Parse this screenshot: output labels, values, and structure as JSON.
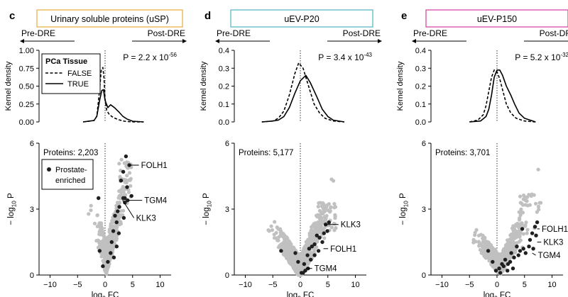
{
  "colors": {
    "background": "#ffffff",
    "other_points": "#c0c0c0",
    "enriched_points": "#1f1f1f",
    "axis": "#000000"
  },
  "legend_density": {
    "title": "PCa Tissue",
    "false_label": "FALSE",
    "true_label": "TRUE"
  },
  "legend_volcano": {
    "label_line1": "Prostate-",
    "label_line2": "enriched"
  },
  "chart_data": [
    {
      "panel": "c",
      "title": "Urinary soluble proteins (uSP)",
      "title_color": "#e8b24a",
      "direction_left": "Pre-DRE",
      "direction_right": "Post-DRE",
      "density": {
        "type": "line",
        "ylabel": "Kernel density",
        "ylim": [
          0,
          1.0
        ],
        "yticks": [
          "0.00",
          "0.25",
          "0.50",
          "0.75",
          "1.00"
        ],
        "xlim": [
          -12,
          12
        ],
        "p_text": "P = 2.2 x 10",
        "p_exp": "-56",
        "series": [
          {
            "name": "FALSE",
            "style": "dashed",
            "x": [
              -4,
              -2,
              -1.5,
              -1,
              -0.7,
              -0.4,
              -0.2,
              0,
              0.3,
              0.8,
              1.5,
              2.5,
              3.5,
              5,
              7
            ],
            "y": [
              0,
              0.02,
              0.08,
              0.45,
              0.72,
              0.76,
              0.62,
              0.32,
              0.16,
              0.1,
              0.06,
              0.03,
              0.01,
              0,
              0
            ]
          },
          {
            "name": "TRUE",
            "style": "solid",
            "x": [
              -4,
              -2,
              -1.5,
              -1,
              -0.6,
              -0.3,
              0,
              0.5,
              1,
              1.7,
              2.5,
              3.2,
              4,
              5,
              7
            ],
            "y": [
              0,
              0.02,
              0.08,
              0.3,
              0.44,
              0.45,
              0.3,
              0.2,
              0.24,
              0.2,
              0.14,
              0.08,
              0.04,
              0.01,
              0
            ]
          }
        ]
      },
      "volcano": {
        "type": "scatter",
        "xlabel": "log",
        "xlabel_sub": "2",
        "xlabel_tail": " FC",
        "ylabel_prefix": "− log",
        "ylabel_sub": "10",
        "ylabel_tail": " P",
        "xlim": [
          -12,
          12
        ],
        "ylim": [
          0,
          6
        ],
        "xticks": [
          -10,
          -5,
          0,
          5,
          10
        ],
        "yticks": [
          0,
          3,
          6
        ],
        "proteins": "Proteins: 2,203",
        "enriched": [
          [
            3.8,
            5.4
          ],
          [
            4.4,
            5.0
          ],
          [
            3.3,
            4.7
          ],
          [
            2.9,
            4.3
          ],
          [
            4.0,
            4.0
          ],
          [
            4.8,
            3.6
          ],
          [
            3.6,
            3.5
          ],
          [
            3.3,
            3.5
          ],
          [
            4.1,
            3.4
          ],
          [
            2.6,
            3.1
          ],
          [
            3.6,
            3.3
          ],
          [
            2.3,
            2.9
          ],
          [
            1.8,
            2.7
          ],
          [
            2.1,
            2.4
          ],
          [
            1.5,
            2.0
          ],
          [
            2.5,
            1.9
          ],
          [
            1.2,
            1.5
          ],
          [
            2.1,
            1.3
          ],
          [
            1.0,
            1.0
          ],
          [
            -1.0,
            1.1
          ],
          [
            1.6,
            0.8
          ],
          [
            0.5,
            0.6
          ],
          [
            -0.4,
            0.4
          ],
          [
            -1.2,
            3.5
          ],
          [
            3.4,
            2.6
          ]
        ],
        "annotations": [
          {
            "label": "FOLH1",
            "x": 4.4,
            "y": 5.0,
            "tx": 6.4,
            "ty": 5.0
          },
          {
            "label": "TGM4",
            "x": 4.3,
            "y": 3.4,
            "tx": 7.0,
            "ty": 3.4
          },
          {
            "label": "KLK3",
            "x": 3.2,
            "y": 3.4,
            "tx": 5.5,
            "ty": 2.6
          }
        ]
      }
    },
    {
      "panel": "d",
      "title": "uEV-P20",
      "title_color": "#5ab8c4",
      "direction_left": "Pre-DRE",
      "direction_right": "Post-DRE",
      "density": {
        "type": "line",
        "ylabel": "Kernel density",
        "ylim": [
          0,
          0.4
        ],
        "yticks": [
          "0.0",
          "0.1",
          "0.2",
          "0.3",
          "0.4"
        ],
        "xlim": [
          -12,
          12
        ],
        "p_text": "P = 3.4 x 10",
        "p_exp": "-43",
        "series": [
          {
            "name": "FALSE",
            "style": "dashed",
            "x": [
              -7,
              -5,
              -4,
              -3,
              -2,
              -1,
              -0.3,
              0.5,
              1.5,
              2.5,
              3.5,
              4.5,
              6,
              8
            ],
            "y": [
              0,
              0.005,
              0.02,
              0.06,
              0.15,
              0.27,
              0.33,
              0.3,
              0.2,
              0.1,
              0.05,
              0.02,
              0.005,
              0
            ]
          },
          {
            "name": "TRUE",
            "style": "solid",
            "x": [
              -7,
              -5,
              -4,
              -3,
              -2,
              -1,
              0,
              1,
              1.8,
              3,
              4,
              5,
              6,
              8
            ],
            "y": [
              0,
              0.005,
              0.01,
              0.03,
              0.08,
              0.16,
              0.23,
              0.26,
              0.22,
              0.14,
              0.07,
              0.03,
              0.01,
              0
            ]
          }
        ]
      },
      "volcano": {
        "type": "scatter",
        "xlabel": "log",
        "xlabel_sub": "2",
        "xlabel_tail": " FC",
        "ylabel_prefix": "− log",
        "ylabel_sub": "10",
        "ylabel_tail": " P",
        "xlim": [
          -12,
          12
        ],
        "ylim": [
          0,
          6
        ],
        "xticks": [
          -10,
          -5,
          0,
          5,
          10
        ],
        "yticks": [
          0,
          3,
          6
        ],
        "proteins": "Proteins: 5,177",
        "enriched": [
          [
            5.2,
            2.4
          ],
          [
            4.6,
            2.3
          ],
          [
            4.9,
            2.0
          ],
          [
            4.3,
            1.9
          ],
          [
            3.5,
            1.7
          ],
          [
            3.0,
            1.8
          ],
          [
            4.0,
            1.5
          ],
          [
            2.6,
            1.4
          ],
          [
            2.1,
            1.3
          ],
          [
            1.6,
            1.2
          ],
          [
            3.3,
            1.1
          ],
          [
            2.6,
            0.9
          ],
          [
            1.3,
            0.9
          ],
          [
            1.9,
            0.7
          ],
          [
            -3.5,
            1.1
          ],
          [
            -0.9,
            1.0
          ],
          [
            -0.4,
            0.6
          ],
          [
            0.7,
            0.5
          ],
          [
            1.4,
            0.3
          ],
          [
            0.9,
            0.2
          ],
          [
            0.2,
            0.1
          ],
          [
            0.5,
            0.1
          ]
        ],
        "annotations": [
          {
            "label": "KLK3",
            "x": 4.6,
            "y": 2.3,
            "tx": 7.2,
            "ty": 2.3
          },
          {
            "label": "FOLH1",
            "x": 4.2,
            "y": 1.2,
            "tx": 5.3,
            "ty": 1.2
          },
          {
            "label": "TGM4",
            "x": 1.0,
            "y": 0.3,
            "tx": 2.4,
            "ty": 0.3
          }
        ]
      }
    },
    {
      "panel": "e",
      "title": "uEV-P150",
      "title_color": "#d44aa6",
      "direction_left": "Pre-DRE",
      "direction_right": "Post-DRE",
      "density": {
        "type": "line",
        "ylabel": "Kernel density",
        "ylim": [
          0,
          0.4
        ],
        "yticks": [
          "0.0",
          "0.1",
          "0.2",
          "0.3",
          "0.4"
        ],
        "xlim": [
          -12,
          12
        ],
        "p_text": "P = 5.2 x 10",
        "p_exp": "-32",
        "series": [
          {
            "name": "FALSE",
            "style": "dashed",
            "x": [
              -5,
              -3.5,
              -2.5,
              -2,
              -1.5,
              -1,
              -0.5,
              0,
              0.5,
              1,
              1.7,
              2.5,
              3.5,
              5,
              7
            ],
            "y": [
              0,
              0.01,
              0.04,
              0.09,
              0.17,
              0.25,
              0.29,
              0.28,
              0.24,
              0.18,
              0.1,
              0.05,
              0.02,
              0.005,
              0
            ]
          },
          {
            "name": "TRUE",
            "style": "solid",
            "x": [
              -5,
              -3,
              -2,
              -1.5,
              -1,
              -0.5,
              0,
              0.5,
              1,
              1.7,
              2.5,
              3.2,
              4,
              5,
              7
            ],
            "y": [
              0,
              0.005,
              0.03,
              0.07,
              0.15,
              0.25,
              0.29,
              0.29,
              0.26,
              0.2,
              0.15,
              0.1,
              0.05,
              0.02,
              0
            ]
          }
        ]
      },
      "volcano": {
        "type": "scatter",
        "xlabel": "log",
        "xlabel_sub": "2",
        "xlabel_tail": " FC",
        "ylabel_prefix": "− log",
        "ylabel_sub": "10",
        "ylabel_tail": " P",
        "xlim": [
          -12,
          12
        ],
        "ylim": [
          0,
          6
        ],
        "xticks": [
          -10,
          -5,
          0,
          5,
          10
        ],
        "yticks": [
          0,
          3,
          6
        ],
        "proteins": "Proteins: 3,701",
        "enriched": [
          [
            7.3,
            2.4
          ],
          [
            6.9,
            2.2
          ],
          [
            7.1,
            1.8
          ],
          [
            6.4,
            1.9
          ],
          [
            6.0,
            1.6
          ],
          [
            5.8,
            1.3
          ],
          [
            6.6,
            1.2
          ],
          [
            5.2,
            1.0
          ],
          [
            4.8,
            1.2
          ],
          [
            4.2,
            1.1
          ],
          [
            3.6,
            1.3
          ],
          [
            3.9,
            0.9
          ],
          [
            2.6,
            1.0
          ],
          [
            3.1,
            0.8
          ],
          [
            2.4,
            0.6
          ],
          [
            2.0,
            0.5
          ],
          [
            1.5,
            0.7
          ],
          [
            1.2,
            0.4
          ],
          [
            0.9,
            0.5
          ],
          [
            0.4,
            0.3
          ],
          [
            -0.2,
            0.2
          ],
          [
            0.6,
            0.1
          ],
          [
            1.9,
            0.2
          ],
          [
            2.9,
            0.3
          ],
          [
            -0.8,
            0.6
          ],
          [
            -1.6,
            1.1
          ],
          [
            4.6,
            2.1
          ]
        ],
        "annotations": [
          {
            "label": "FOLH1",
            "x": 7.3,
            "y": 2.1,
            "tx": 8.0,
            "ty": 2.1
          },
          {
            "label": "KLK3",
            "x": 7.3,
            "y": 1.5,
            "tx": 8.3,
            "ty": 1.5
          },
          {
            "label": "TGM4",
            "x": 6.4,
            "y": 1.0,
            "tx": 7.3,
            "ty": 0.9
          }
        ]
      }
    }
  ]
}
